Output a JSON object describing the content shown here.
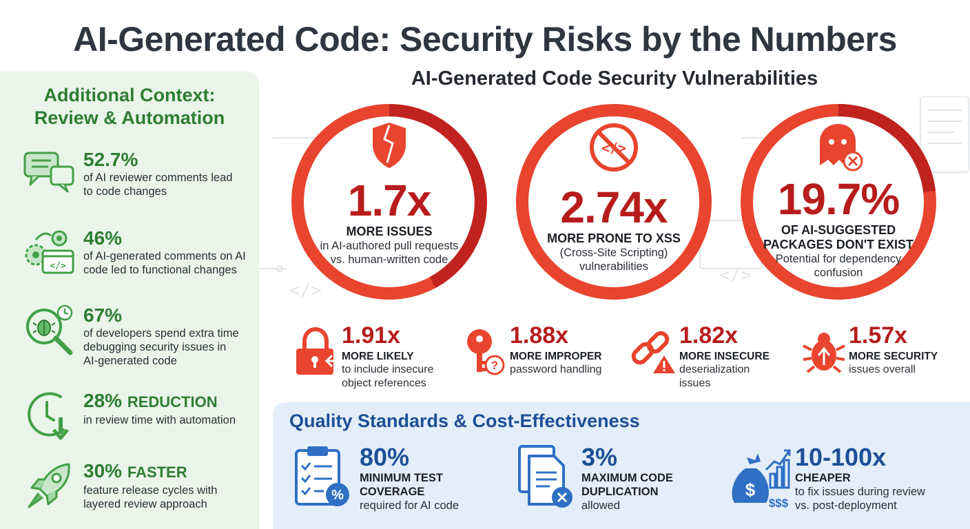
{
  "title": "AI-Generated Code: Security Risks by the Numbers",
  "context": {
    "title_line1": "Additional Context:",
    "title_line2": "Review & Automation",
    "items": [
      {
        "stat": "52.7%",
        "suffix": "",
        "desc_line1": "of AI reviewer comments lead",
        "desc_line2": "to code changes",
        "desc_line3": ""
      },
      {
        "stat": "46%",
        "suffix": "",
        "desc_line1": "of AI-generated comments on AI",
        "desc_line2": "code led to functional changes",
        "desc_line3": ""
      },
      {
        "stat": "67%",
        "suffix": "",
        "desc_line1": "of developers spend extra time",
        "desc_line2": "debugging security issues in",
        "desc_line3": "AI-generated code"
      },
      {
        "stat": "28%",
        "suffix": "REDUCTION",
        "desc_line1": "in review time with automation",
        "desc_line2": "",
        "desc_line3": ""
      },
      {
        "stat": "30%",
        "suffix": "FASTER",
        "desc_line1": "feature release cycles with",
        "desc_line2": "layered review approach",
        "desc_line3": ""
      }
    ]
  },
  "vulnerabilities": {
    "title": "AI-Generated Code Security Vulnerabilities",
    "rings": [
      {
        "value": "1.7x",
        "label_line1": "MORE ISSUES",
        "label_line2": "",
        "desc_line1": "in AI-authored pull requests",
        "desc_line2": "vs. human-written code"
      },
      {
        "value": "2.74x",
        "label_line1": "MORE PRONE TO XSS",
        "label_line2": "",
        "desc_line1": "(Cross-Site Scripting)",
        "desc_line2": "vulnerabilities"
      },
      {
        "value": "19.7%",
        "label_line1": "OF AI-SUGGESTED",
        "label_line2": "PACKAGES DON'T EXIST",
        "desc_line1": "Potential for dependency",
        "desc_line2": "confusion"
      }
    ],
    "minis": [
      {
        "value": "1.91x",
        "label": "MORE LIKELY",
        "desc_line1": "to include insecure",
        "desc_line2": "object references"
      },
      {
        "value": "1.88x",
        "label": "MORE IMPROPER",
        "desc_line1": "password handling",
        "desc_line2": ""
      },
      {
        "value": "1.82x",
        "label": "MORE INSECURE",
        "desc_line1": "deserialization",
        "desc_line2": "issues"
      },
      {
        "value": "1.57x",
        "label": "MORE SECURITY",
        "desc_line1": "issues overall",
        "desc_line2": ""
      }
    ]
  },
  "quality": {
    "title": "Quality Standards & Cost-Effectiveness",
    "items": [
      {
        "value": "80%",
        "label_line1": "MINIMUM TEST",
        "label_line2": "COVERAGE",
        "desc_line1": "required for AI code",
        "desc_line2": ""
      },
      {
        "value": "3%",
        "label_line1": "MAXIMUM CODE",
        "label_line2": "DUPLICATION",
        "desc_line1": "allowed",
        "desc_line2": ""
      },
      {
        "value": "10-100x",
        "label_line1": "CHEAPER",
        "label_line2": "",
        "desc_line1": "to fix issues during review",
        "desc_line2": "vs. post-deployment"
      }
    ]
  },
  "colors": {
    "green": "#2e7d32",
    "red": "#b71c1c",
    "ring_red": "#e8442e",
    "blue": "#1e4f96",
    "dollar_sign_glyph": "$"
  }
}
